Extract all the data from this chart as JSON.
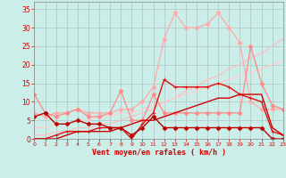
{
  "xlabel": "Vent moyen/en rafales ( km/h )",
  "background_color": "#cceee8",
  "grid_color": "#aabbbb",
  "xlim": [
    0,
    23
  ],
  "ylim": [
    0,
    37
  ],
  "yticks": [
    0,
    5,
    10,
    15,
    20,
    25,
    30,
    35
  ],
  "xticks": [
    0,
    1,
    2,
    3,
    4,
    5,
    6,
    7,
    8,
    9,
    10,
    11,
    12,
    13,
    14,
    15,
    16,
    17,
    18,
    19,
    20,
    21,
    22,
    23
  ],
  "series": [
    {
      "x": [
        0,
        1,
        2,
        3,
        4,
        5,
        6,
        7,
        8,
        9,
        10,
        11,
        12,
        13,
        14,
        15,
        16,
        17,
        18,
        19,
        20,
        21,
        22,
        23
      ],
      "y": [
        1,
        1,
        2,
        2,
        3,
        3,
        4,
        4,
        5,
        6,
        7,
        8,
        10,
        11,
        13,
        14,
        16,
        17,
        19,
        20,
        22,
        23,
        25,
        27
      ],
      "color": "#ffbbbb",
      "linewidth": 0.8,
      "marker": null,
      "markersize": 0
    },
    {
      "x": [
        0,
        1,
        2,
        3,
        4,
        5,
        6,
        7,
        8,
        9,
        10,
        11,
        12,
        13,
        14,
        15,
        16,
        17,
        18,
        19,
        20,
        21,
        22,
        23
      ],
      "y": [
        3,
        3,
        4,
        4,
        5,
        5,
        6,
        6,
        7,
        7,
        8,
        9,
        10,
        11,
        12,
        13,
        14,
        15,
        16,
        17,
        18,
        19,
        20,
        21
      ],
      "color": "#ffcccc",
      "linewidth": 0.8,
      "marker": null,
      "markersize": 0
    },
    {
      "x": [
        0,
        1,
        2,
        3,
        4,
        5,
        6,
        7,
        8,
        9,
        10,
        11,
        12,
        13,
        14,
        15,
        16,
        17,
        18,
        19,
        20,
        21,
        22,
        23
      ],
      "y": [
        7,
        6,
        7,
        7,
        8,
        7,
        7,
        7,
        8,
        8,
        10,
        14,
        27,
        34,
        30,
        30,
        31,
        34,
        30,
        26,
        10,
        8,
        8,
        8
      ],
      "color": "#ffaaaa",
      "linewidth": 0.9,
      "marker": "D",
      "markersize": 2.5
    },
    {
      "x": [
        0,
        1,
        2,
        3,
        4,
        5,
        6,
        7,
        8,
        9,
        10,
        11,
        12,
        13,
        14,
        15,
        16,
        17,
        18,
        19,
        20,
        21,
        22,
        23
      ],
      "y": [
        12,
        7,
        6,
        7,
        8,
        6,
        6,
        7,
        13,
        5,
        5,
        12,
        7,
        7,
        7,
        7,
        7,
        7,
        7,
        7,
        25,
        15,
        9,
        8
      ],
      "color": "#ff8888",
      "linewidth": 0.9,
      "marker": "D",
      "markersize": 2.5
    },
    {
      "x": [
        0,
        1,
        2,
        3,
        4,
        5,
        6,
        7,
        8,
        9,
        10,
        11,
        12,
        13,
        14,
        15,
        16,
        17,
        18,
        19,
        20,
        21,
        22,
        23
      ],
      "y": [
        0,
        0,
        1,
        2,
        2,
        2,
        3,
        3,
        3,
        0,
        4,
        7,
        16,
        14,
        14,
        14,
        14,
        15,
        14,
        12,
        11,
        10,
        2,
        1
      ],
      "color": "#dd1111",
      "linewidth": 1.0,
      "marker": "+",
      "markersize": 3.5
    },
    {
      "x": [
        0,
        1,
        2,
        3,
        4,
        5,
        6,
        7,
        8,
        9,
        10,
        11,
        12,
        13,
        14,
        15,
        16,
        17,
        18,
        19,
        20,
        21,
        22,
        23
      ],
      "y": [
        6,
        7,
        4,
        4,
        5,
        4,
        4,
        3,
        3,
        1,
        3,
        6,
        3,
        3,
        3,
        3,
        3,
        3,
        3,
        3,
        3,
        3,
        0,
        0
      ],
      "color": "#bb0000",
      "linewidth": 1.0,
      "marker": "D",
      "markersize": 2.5
    },
    {
      "x": [
        0,
        1,
        2,
        3,
        4,
        5,
        6,
        7,
        8,
        9,
        10,
        11,
        12,
        13,
        14,
        15,
        16,
        17,
        18,
        19,
        20,
        21,
        22,
        23
      ],
      "y": [
        0,
        0,
        0,
        1,
        2,
        2,
        2,
        2,
        3,
        4,
        5,
        5,
        6,
        7,
        8,
        9,
        10,
        11,
        11,
        12,
        12,
        12,
        3,
        1
      ],
      "color": "#cc0000",
      "linewidth": 1.0,
      "marker": null,
      "markersize": 0
    }
  ]
}
